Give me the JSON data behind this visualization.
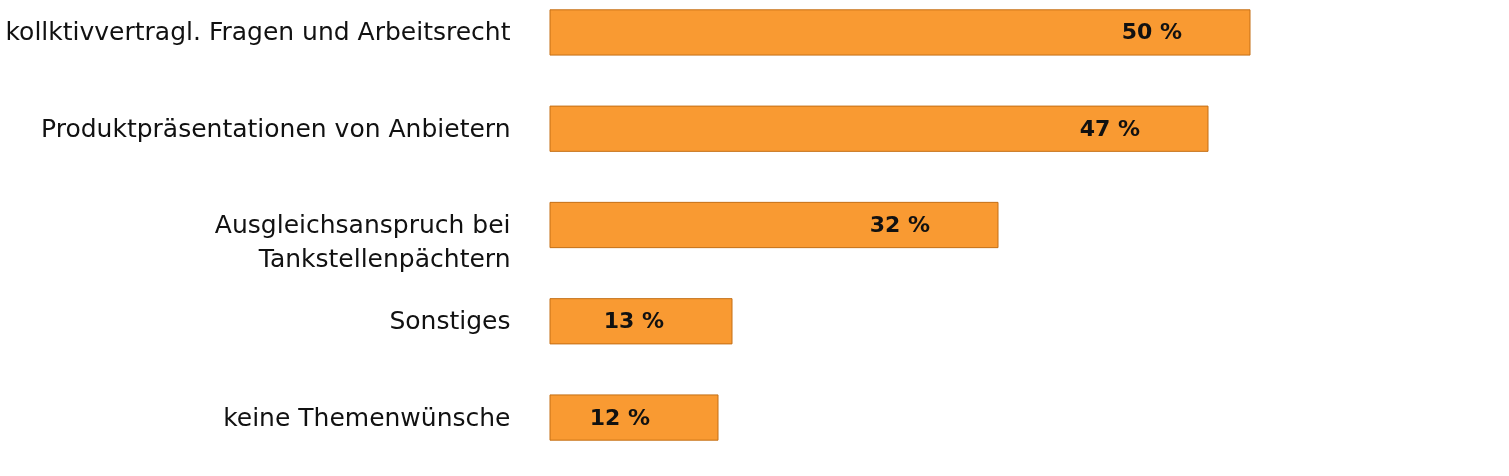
{
  "chart_data": {
    "type": "bar",
    "orientation": "horizontal",
    "categories": [
      "kollktivvertragl. Fragen und Arbeitsrecht",
      "Produktpräsentationen von Anbietern",
      "Ausgleichsanspruch bei\nTankstellenpächtern",
      "Sonstiges",
      "keine Themenwünsche"
    ],
    "values": [
      50,
      47,
      32,
      13,
      12
    ],
    "value_labels": [
      "50 %",
      "47 %",
      "32 %",
      "13 %",
      "12 %"
    ],
    "color": "#f99a32",
    "grid": false
  }
}
